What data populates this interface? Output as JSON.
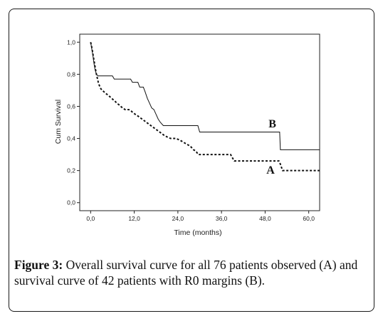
{
  "caption": {
    "lead": "Figure 3:",
    "text": " Overall survival curve for all 76 patients observed (A) and survival curve of 42 patients with R0 margins (B)."
  },
  "chart_data": {
    "type": "line",
    "xlabel": "Time (months)",
    "ylabel": "Cum Survival",
    "xlim": [
      -3,
      63
    ],
    "ylim": [
      -0.05,
      1.05
    ],
    "x_ticks": [
      0,
      12,
      24,
      36,
      48,
      60
    ],
    "x_tick_labels": [
      "0,0",
      "12,0",
      "24,0",
      "36,0",
      "48,0",
      "60,0"
    ],
    "y_ticks": [
      0.0,
      0.2,
      0.4,
      0.6,
      0.8,
      1.0
    ],
    "y_tick_labels": [
      "0,0",
      "0,2",
      "0,4",
      "0,6",
      "0,8",
      "1,0"
    ],
    "grid": false,
    "series": [
      {
        "name": "A",
        "style": "dashed",
        "color": "#111111",
        "label_at": [
          49.5,
          0.18
        ],
        "points": [
          [
            0,
            1.0
          ],
          [
            0.3,
            0.97
          ],
          [
            0.6,
            0.93
          ],
          [
            0.9,
            0.89
          ],
          [
            1.2,
            0.85
          ],
          [
            1.5,
            0.81
          ],
          [
            1.8,
            0.78
          ],
          [
            2.1,
            0.75
          ],
          [
            2.4,
            0.73
          ],
          [
            2.8,
            0.71
          ],
          [
            3.2,
            0.7
          ],
          [
            3.7,
            0.69
          ],
          [
            4.2,
            0.68
          ],
          [
            4.8,
            0.67
          ],
          [
            5.3,
            0.66
          ],
          [
            5.8,
            0.65
          ],
          [
            6.3,
            0.64
          ],
          [
            6.8,
            0.63
          ],
          [
            7.2,
            0.62
          ],
          [
            7.8,
            0.61
          ],
          [
            8.3,
            0.6
          ],
          [
            8.8,
            0.59
          ],
          [
            9.5,
            0.58
          ],
          [
            10.5,
            0.58
          ],
          [
            11.2,
            0.57
          ],
          [
            11.7,
            0.56
          ],
          [
            12.3,
            0.55
          ],
          [
            13.0,
            0.54
          ],
          [
            13.6,
            0.53
          ],
          [
            14.2,
            0.52
          ],
          [
            14.8,
            0.51
          ],
          [
            15.4,
            0.5
          ],
          [
            16.0,
            0.49
          ],
          [
            16.6,
            0.48
          ],
          [
            17.2,
            0.47
          ],
          [
            17.8,
            0.46
          ],
          [
            18.4,
            0.45
          ],
          [
            19.0,
            0.44
          ],
          [
            19.6,
            0.43
          ],
          [
            20.2,
            0.42
          ],
          [
            21.0,
            0.41
          ],
          [
            22.0,
            0.4
          ],
          [
            23.5,
            0.4
          ],
          [
            24.5,
            0.39
          ],
          [
            25.3,
            0.38
          ],
          [
            26.0,
            0.37
          ],
          [
            26.8,
            0.36
          ],
          [
            27.5,
            0.35
          ],
          [
            28.3,
            0.33
          ],
          [
            29.0,
            0.32
          ],
          [
            29.6,
            0.3
          ],
          [
            38.5,
            0.3
          ],
          [
            39.0,
            0.28
          ],
          [
            39.5,
            0.26
          ],
          [
            51.8,
            0.26
          ],
          [
            52.2,
            0.24
          ],
          [
            52.5,
            0.22
          ],
          [
            52.8,
            0.2
          ],
          [
            63,
            0.2
          ]
        ]
      },
      {
        "name": "B",
        "style": "solid",
        "color": "#111111",
        "label_at": [
          50.0,
          0.47
        ],
        "points": [
          [
            0,
            1.0
          ],
          [
            0.3,
            0.96
          ],
          [
            0.6,
            0.92
          ],
          [
            0.9,
            0.87
          ],
          [
            1.2,
            0.83
          ],
          [
            1.6,
            0.8
          ],
          [
            2.0,
            0.79
          ],
          [
            6.0,
            0.79
          ],
          [
            6.5,
            0.77
          ],
          [
            11.0,
            0.77
          ],
          [
            11.5,
            0.75
          ],
          [
            13.0,
            0.75
          ],
          [
            13.5,
            0.72
          ],
          [
            14.5,
            0.72
          ],
          [
            15.0,
            0.69
          ],
          [
            15.6,
            0.65
          ],
          [
            16.2,
            0.62
          ],
          [
            16.8,
            0.59
          ],
          [
            17.4,
            0.58
          ],
          [
            18.0,
            0.55
          ],
          [
            18.6,
            0.52
          ],
          [
            19.2,
            0.5
          ],
          [
            20.0,
            0.48
          ],
          [
            29.5,
            0.48
          ],
          [
            30.0,
            0.44
          ],
          [
            52.0,
            0.44
          ],
          [
            52.2,
            0.33
          ],
          [
            63,
            0.33
          ]
        ]
      }
    ]
  }
}
